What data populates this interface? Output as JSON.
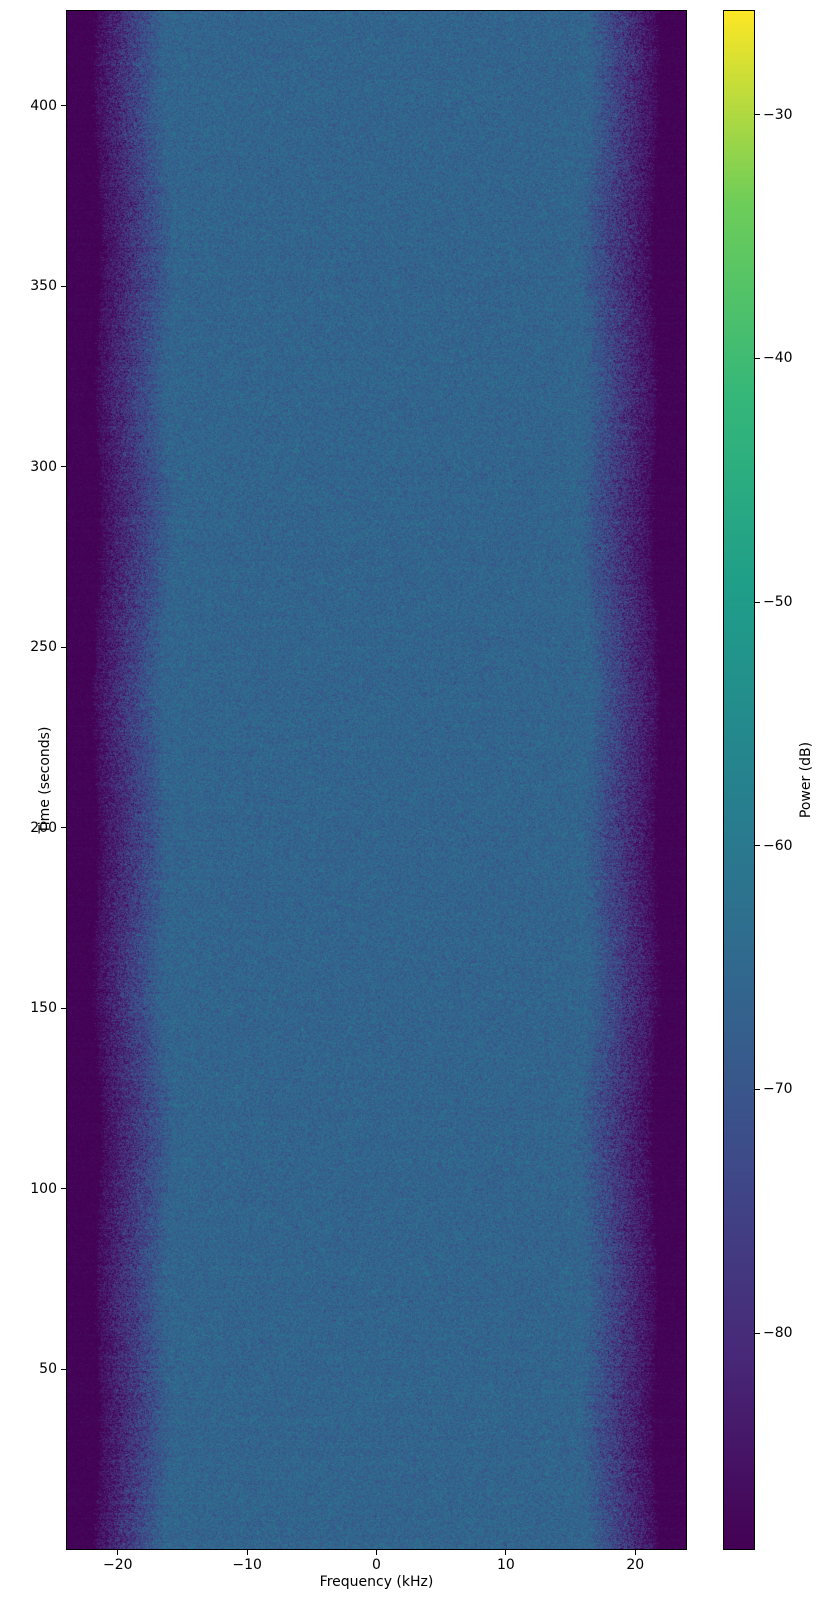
{
  "chart_data": {
    "type": "heatmap",
    "title": "",
    "xlabel": "Frequency (kHz)",
    "ylabel": "Time (seconds)",
    "xlim": [
      -24,
      24
    ],
    "ylim": [
      0,
      426.5
    ],
    "xticks": [
      -20,
      -10,
      0,
      10,
      20
    ],
    "xtick_labels": [
      "−20",
      "−10",
      "0",
      "10",
      "20"
    ],
    "yticks": [
      50,
      100,
      150,
      200,
      250,
      300,
      350,
      400
    ],
    "ytick_labels": [
      "50",
      "100",
      "150",
      "200",
      "250",
      "300",
      "350",
      "400"
    ],
    "grid": false,
    "colormap": "viridis",
    "colormap_stops": [
      [
        0.0,
        "#440154"
      ],
      [
        0.125,
        "#482878"
      ],
      [
        0.25,
        "#3e4a89"
      ],
      [
        0.375,
        "#31688e"
      ],
      [
        0.5,
        "#26828e"
      ],
      [
        0.625,
        "#1f9e89"
      ],
      [
        0.75,
        "#35b779"
      ],
      [
        0.875,
        "#6dcd59"
      ],
      [
        1.0,
        "#fde725"
      ]
    ],
    "colorbar": {
      "label": "Power (dB)",
      "vmin": -88.9,
      "vmax": -25.7,
      "ticks": [
        -30,
        -40,
        -50,
        -60,
        -70,
        -80
      ],
      "tick_labels": [
        "−30",
        "−40",
        "−50",
        "−60",
        "−70",
        "−80"
      ]
    },
    "signal_profile": {
      "description": "Spectrogram of broadband noise: flat passband about ±16 kHz wide at ≈ −66 dB with pixel-level speckle, rolling off between ≈16 and ≈21.6 kHz down to the ≈ −88.5 dB noise floor (deep purple) at the ±24 kHz band edges; statistics constant over the full 0–426 s record.",
      "passband_edge_khz": 16.2,
      "stopband_edge_khz": 21.6,
      "passband_power_db": -66.0,
      "stopband_power_db": -88.5,
      "passband_noise_std_db": 3.3,
      "rolloff_extra_noise_std_db": 2.0,
      "stopband_noise_std_db": 1.0
    },
    "colors": {
      "background": "#ffffff",
      "spine": "#000000",
      "text": "#000000"
    }
  }
}
